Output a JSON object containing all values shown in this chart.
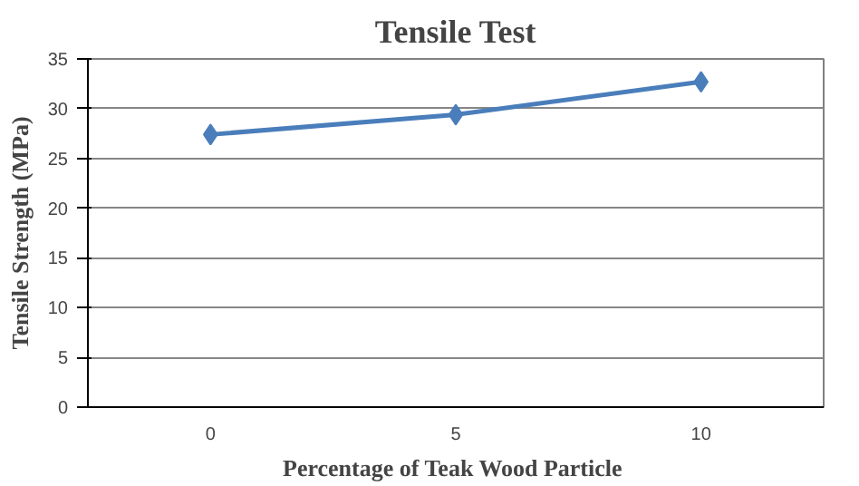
{
  "chart_data": {
    "type": "line",
    "title": "Tensile Test",
    "xlabel": "Percentage  of Teak Wood Particle",
    "ylabel": "Tensile Strength (MPa)",
    "categories": [
      "0",
      "5",
      "10"
    ],
    "series": [
      {
        "color": "#4a7ebb",
        "values": [
          27.4,
          29.4,
          32.7
        ]
      }
    ],
    "ylim": [
      0,
      35
    ],
    "yticks": [
      0,
      5,
      10,
      15,
      20,
      25,
      30,
      35
    ],
    "grid": "y",
    "marker": "diamond",
    "line_style": "solid"
  }
}
